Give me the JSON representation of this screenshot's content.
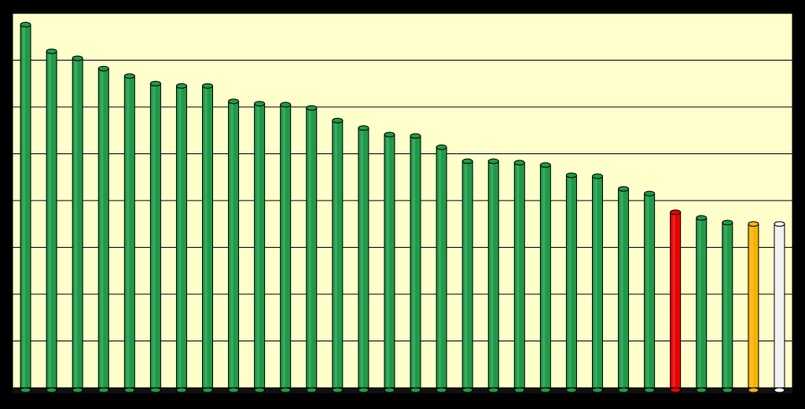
{
  "chart_data": {
    "type": "bar",
    "values": [
      7.76,
      7.19,
      7.04,
      6.82,
      6.66,
      6.5,
      6.45,
      6.45,
      6.12,
      6.07,
      6.05,
      5.98,
      5.71,
      5.55,
      5.41,
      5.38,
      5.14,
      4.84,
      4.84,
      4.81,
      4.76,
      4.54,
      4.52,
      4.25,
      4.15,
      3.75,
      3.63,
      3.53,
      3.5,
      3.5
    ],
    "colors": [
      "#1f9a48",
      "#1f9a48",
      "#1f9a48",
      "#1f9a48",
      "#1f9a48",
      "#1f9a48",
      "#1f9a48",
      "#1f9a48",
      "#1f9a48",
      "#1f9a48",
      "#1f9a48",
      "#1f9a48",
      "#1f9a48",
      "#1f9a48",
      "#1f9a48",
      "#1f9a48",
      "#1f9a48",
      "#1f9a48",
      "#1f9a48",
      "#1f9a48",
      "#1f9a48",
      "#1f9a48",
      "#1f9a48",
      "#1f9a48",
      "#1f9a48",
      "#e80000",
      "#1f9a48",
      "#1f9a48",
      "#f5b400",
      "#f2f2f2"
    ],
    "ylim": [
      0,
      8
    ],
    "yticks": [
      0,
      1,
      2,
      3,
      4,
      5,
      6,
      7,
      8
    ],
    "grid": true,
    "plot_background": "#ffffcc"
  }
}
